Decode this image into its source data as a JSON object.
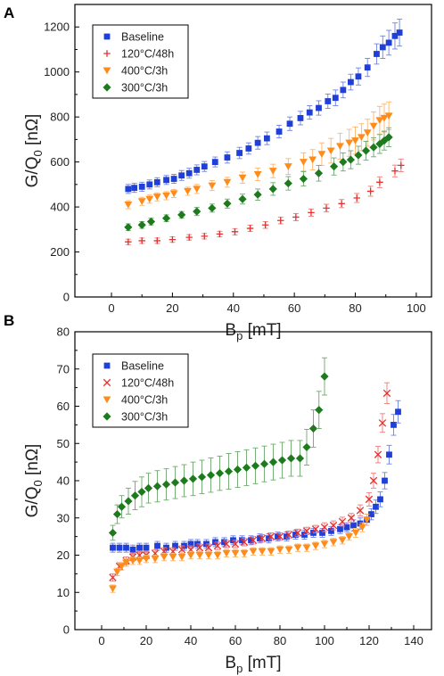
{
  "chart_data": [
    {
      "panel": "A",
      "type": "scatter",
      "xlabel": "B",
      "xlabel_sub": "p",
      "xlabel_unit": " [mT]",
      "ylabel": "G/Q",
      "ylabel_sub": "0",
      "ylabel_unit": " [nΩ]",
      "xlim": [
        -12,
        105
      ],
      "ylim": [
        0,
        1300
      ],
      "xticks": [
        0,
        20,
        40,
        60,
        80,
        100
      ],
      "yticks": [
        0,
        200,
        400,
        600,
        800,
        1000,
        1200
      ],
      "legend": "top-left",
      "series": [
        {
          "name": "Baseline",
          "color": "#1f3fd8",
          "marker": "square",
          "x": [
            5.5,
            7.5,
            10,
            12.5,
            15,
            18,
            20.5,
            23,
            25.5,
            28,
            30.5,
            34,
            38,
            42,
            45,
            48,
            51,
            55,
            58.5,
            62,
            65,
            68,
            71,
            73.5,
            76,
            78.5,
            81,
            84,
            87,
            89,
            91,
            93,
            94.5
          ],
          "y": [
            480,
            485,
            490,
            500,
            510,
            520,
            525,
            540,
            550,
            565,
            580,
            600,
            620,
            640,
            660,
            685,
            705,
            735,
            770,
            795,
            820,
            840,
            870,
            885,
            920,
            955,
            980,
            1020,
            1080,
            1110,
            1130,
            1160,
            1175
          ],
          "err": [
            20,
            20,
            20,
            20,
            20,
            20,
            20,
            22,
            22,
            22,
            22,
            22,
            25,
            25,
            25,
            28,
            28,
            28,
            30,
            30,
            30,
            32,
            32,
            35,
            35,
            35,
            38,
            40,
            45,
            50,
            55,
            58,
            60
          ]
        },
        {
          "name": "120°C/48h",
          "color": "#e8302e",
          "marker": "plus",
          "x": [
            5.5,
            10,
            15,
            20,
            25.5,
            30.5,
            35.5,
            40.5,
            45.5,
            50.5,
            55.5,
            60.5,
            65.5,
            70.5,
            75.5,
            80.5,
            85,
            88,
            93,
            95
          ],
          "y": [
            245,
            250,
            250,
            255,
            265,
            270,
            280,
            290,
            305,
            320,
            340,
            355,
            375,
            395,
            415,
            440,
            470,
            510,
            560,
            585
          ],
          "err": [
            12,
            12,
            12,
            12,
            12,
            12,
            12,
            14,
            14,
            15,
            15,
            16,
            16,
            17,
            18,
            20,
            22,
            24,
            26,
            28
          ]
        },
        {
          "name": "400°C/3h",
          "color": "#ff8c1a",
          "marker": "triangle-down",
          "x": [
            5.5,
            10,
            12.5,
            15,
            18,
            20.5,
            25,
            28,
            33,
            38,
            43,
            48,
            53,
            58,
            63,
            66,
            69,
            72,
            75,
            78,
            80,
            82,
            84,
            86,
            88,
            89.5,
            91
          ],
          "y": [
            410,
            425,
            435,
            445,
            450,
            460,
            470,
            480,
            495,
            510,
            530,
            545,
            560,
            580,
            600,
            610,
            635,
            650,
            670,
            685,
            695,
            710,
            730,
            760,
            785,
            795,
            805
          ],
          "err": [
            18,
            18,
            18,
            18,
            18,
            18,
            18,
            20,
            22,
            22,
            25,
            28,
            30,
            35,
            40,
            45,
            50,
            55,
            58,
            60,
            60,
            60,
            60,
            62,
            62,
            62,
            62
          ]
        },
        {
          "name": "300°C/3h",
          "color": "#1d7a1d",
          "marker": "diamond",
          "x": [
            5.5,
            10,
            13,
            18,
            23,
            28,
            33,
            38,
            43,
            48,
            53,
            58,
            63,
            68,
            73,
            76,
            78.5,
            81,
            83.5,
            86,
            88,
            89.5,
            91
          ],
          "y": [
            310,
            320,
            335,
            350,
            365,
            380,
            395,
            415,
            435,
            455,
            480,
            505,
            525,
            550,
            580,
            600,
            610,
            630,
            650,
            665,
            680,
            695,
            710
          ],
          "err": [
            15,
            15,
            15,
            15,
            15,
            18,
            18,
            20,
            22,
            25,
            28,
            30,
            32,
            35,
            38,
            40,
            40,
            40,
            42,
            42,
            42,
            42,
            42
          ]
        }
      ]
    },
    {
      "panel": "B",
      "type": "scatter",
      "xlabel": "B",
      "xlabel_sub": "p",
      "xlabel_unit": " [mT]",
      "ylabel": "G/Q",
      "ylabel_sub": "0",
      "ylabel_unit": " [nΩ]",
      "xlim": [
        -12,
        148
      ],
      "ylim": [
        0,
        80
      ],
      "xticks": [
        0,
        20,
        40,
        60,
        80,
        100,
        120,
        140
      ],
      "yticks": [
        0,
        10,
        20,
        30,
        40,
        50,
        60,
        70,
        80
      ],
      "legend": "top-left",
      "series": [
        {
          "name": "Baseline",
          "color": "#1f3fd8",
          "marker": "square",
          "x": [
            5,
            8,
            11,
            14,
            17,
            20,
            25,
            29,
            33,
            37,
            40,
            43,
            47,
            51,
            55,
            59,
            63,
            67,
            71,
            75,
            79,
            83,
            87,
            91,
            95,
            99,
            103,
            107,
            110,
            113,
            116,
            119,
            121,
            123,
            125,
            127,
            129,
            131,
            133
          ],
          "y": [
            22,
            22,
            22,
            21.5,
            22,
            22,
            22.5,
            22,
            22.5,
            22.5,
            23,
            23,
            23,
            23.5,
            23.5,
            24,
            24,
            24,
            24.5,
            24.5,
            25,
            25,
            25.5,
            25.5,
            26,
            26,
            26.5,
            27,
            27.5,
            28,
            28.5,
            29.5,
            31,
            33,
            35,
            40,
            47,
            55,
            58.5
          ],
          "err": [
            1.2,
            1.2,
            1.2,
            1.2,
            1.2,
            1.2,
            1.2,
            1.2,
            1.2,
            1.2,
            1.2,
            1.2,
            1.2,
            1.2,
            1.2,
            1.2,
            1.2,
            1.2,
            1.2,
            1.2,
            1.2,
            1.2,
            1.2,
            1.2,
            1.2,
            1.2,
            1.2,
            1.2,
            1.2,
            1.5,
            1.5,
            1.5,
            1.5,
            1.8,
            2.0,
            2.2,
            2.5,
            2.8,
            3.0
          ]
        },
        {
          "name": "120°C/48h",
          "color": "#e8302e",
          "marker": "cross",
          "x": [
            5,
            8,
            11,
            14,
            17,
            20,
            24,
            28,
            32,
            36,
            40,
            44,
            48,
            52,
            56,
            60,
            64,
            68,
            72,
            76,
            80,
            84,
            88,
            92,
            96,
            100,
            104,
            108,
            112,
            116,
            120,
            122,
            124,
            126,
            128
          ],
          "y": [
            14,
            17,
            18.5,
            19.5,
            20,
            20,
            20.5,
            21,
            21,
            21.5,
            21.5,
            22,
            22,
            22.5,
            23,
            23,
            23.5,
            24,
            24.5,
            25,
            25,
            25.5,
            26,
            26.5,
            27,
            27.5,
            28,
            29,
            30,
            32,
            35,
            40,
            47,
            55.5,
            63.5
          ],
          "err": [
            1.0,
            1.0,
            1.0,
            1.0,
            1.0,
            1.0,
            1.0,
            1.0,
            1.0,
            1.0,
            1.0,
            1.0,
            1.0,
            1.0,
            1.0,
            1.0,
            1.0,
            1.0,
            1.0,
            1.0,
            1.0,
            1.0,
            1.0,
            1.0,
            1.0,
            1.2,
            1.2,
            1.2,
            1.2,
            1.5,
            1.8,
            2.0,
            2.2,
            2.5,
            2.8
          ]
        },
        {
          "name": "400°C/3h",
          "color": "#ff8c1a",
          "marker": "triangle-down",
          "x": [
            5,
            7,
            9,
            11,
            14,
            17,
            20,
            24,
            28,
            32,
            36,
            40,
            44,
            48,
            52,
            56,
            60,
            64,
            68,
            72,
            76,
            80,
            84,
            88,
            92,
            96,
            100,
            104,
            108,
            111,
            114,
            117,
            119
          ],
          "y": [
            11,
            15.5,
            17,
            18,
            18.5,
            18.5,
            19,
            19,
            19.5,
            19.5,
            19.5,
            20,
            20,
            20,
            20,
            20.5,
            20.5,
            20.5,
            21,
            21,
            21,
            21.5,
            21.5,
            22,
            22,
            22.5,
            23,
            23.5,
            24,
            25,
            26,
            27.5,
            29.5
          ],
          "err": [
            1.0,
            1.0,
            1.0,
            1.0,
            1.0,
            1.0,
            1.0,
            1.0,
            1.0,
            1.0,
            1.0,
            1.0,
            1.0,
            1.0,
            1.0,
            1.0,
            1.0,
            1.0,
            1.0,
            1.0,
            1.0,
            1.0,
            1.0,
            1.0,
            1.0,
            1.0,
            1.0,
            1.0,
            1.0,
            1.0,
            1.2,
            1.2,
            1.5
          ]
        },
        {
          "name": "300°C/3h",
          "color": "#1d7a1d",
          "marker": "diamond",
          "x": [
            5,
            7,
            9,
            12,
            15,
            18,
            21,
            25,
            29,
            33,
            37,
            41,
            45,
            49,
            53,
            57,
            61,
            65,
            69,
            73,
            77,
            81,
            85,
            89,
            92,
            95,
            97.5,
            100
          ],
          "y": [
            26,
            31,
            33,
            34.5,
            36,
            37,
            38,
            38.5,
            39,
            39.5,
            40,
            40.5,
            41,
            41.5,
            42,
            42.5,
            43,
            43.5,
            44,
            44.5,
            45,
            45.5,
            46,
            46,
            49,
            54,
            59,
            68
          ],
          "err": [
            2.0,
            2.5,
            3.0,
            3.5,
            3.8,
            4.0,
            4.0,
            4.2,
            4.2,
            4.3,
            4.3,
            4.5,
            4.5,
            4.6,
            4.6,
            4.8,
            4.8,
            4.8,
            4.8,
            4.8,
            4.8,
            4.8,
            4.8,
            4.8,
            4.8,
            5.0,
            5.0,
            5.0
          ]
        }
      ]
    }
  ],
  "panels": {
    "a": {
      "letter": "A"
    },
    "b": {
      "letter": "B"
    }
  }
}
